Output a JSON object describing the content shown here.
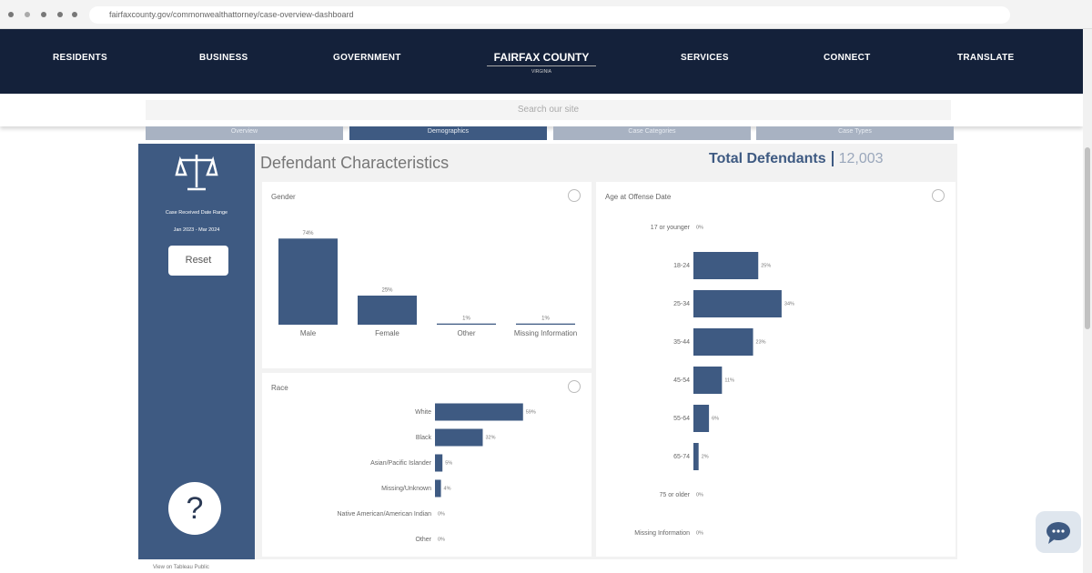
{
  "browser": {
    "url": "fairfaxcounty.gov/commonwealthattorney/case-overview-dashboard"
  },
  "nav": {
    "left": [
      "RESIDENTS",
      "BUSINESS",
      "GOVERNMENT"
    ],
    "logo": {
      "title": "FAIRFAX COUNTY",
      "subtitle": "VIRGINIA"
    },
    "right": [
      "SERVICES",
      "CONNECT",
      "TRANSLATE"
    ]
  },
  "search": {
    "placeholder": "Search our site"
  },
  "tabs": [
    "Overview",
    "Demographics",
    "Case Categories",
    "Case Types"
  ],
  "sidebar": {
    "label": "Case Received Date Range",
    "range": "Jan 2023 - Mar 2024",
    "reset": "Reset",
    "help": "?"
  },
  "dashboard": {
    "title": "Defendant Characteristics",
    "total_label": "Total Defendants",
    "total_value": "12,003"
  },
  "charts": [
    {
      "type": "bar",
      "orientation": "vertical",
      "title": "Gender",
      "categories": [
        "Male",
        "Female",
        "Other",
        "Missing Information"
      ],
      "values": [
        74,
        25,
        1,
        1
      ],
      "value_labels": [
        "74%",
        "25%",
        "1%",
        "1%"
      ],
      "color": "#3e5a82"
    },
    {
      "type": "bar",
      "orientation": "horizontal",
      "title": "Race",
      "categories": [
        "White",
        "Black",
        "Asian/Pacific Islander",
        "Missing/Unknown",
        "Native American/American Indian",
        "Other"
      ],
      "values": [
        59,
        32,
        5,
        4,
        0,
        0
      ],
      "value_labels": [
        "59%",
        "32%",
        "5%",
        "4%",
        "0%",
        "0%"
      ],
      "color": "#3e5a82"
    },
    {
      "type": "bar",
      "orientation": "horizontal",
      "title": "Age at Offense Date",
      "categories": [
        "17 or younger",
        "18-24",
        "25-34",
        "35-44",
        "45-54",
        "55-64",
        "65-74",
        "75 or older",
        "Missing Information"
      ],
      "values": [
        0,
        25,
        34,
        23,
        11,
        6,
        2,
        0,
        0
      ],
      "value_labels": [
        "0%",
        "25%",
        "34%",
        "23%",
        "11%",
        "6%",
        "2%",
        "0%",
        "0%"
      ],
      "color": "#3e5a82"
    }
  ],
  "footer": {
    "link": "View on Tableau Public"
  }
}
